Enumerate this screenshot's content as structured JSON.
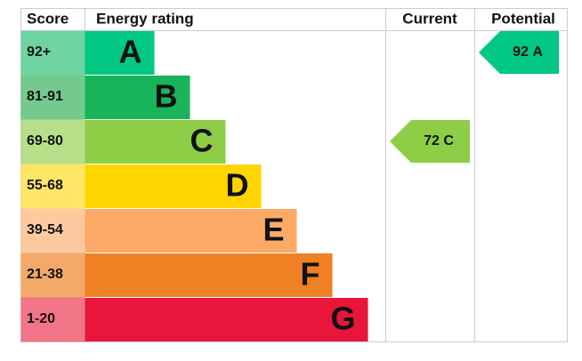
{
  "header": {
    "score": "Score",
    "energy_rating": "Energy rating",
    "current": "Current",
    "potential": "Potential"
  },
  "rows": [
    {
      "score": "92+",
      "rating": "A",
      "color": "#00c781",
      "score_color": "#6fd3a4"
    },
    {
      "score": "81-91",
      "rating": "B",
      "color": "#19b459",
      "score_color": "#74c98e"
    },
    {
      "score": "69-80",
      "rating": "C",
      "color": "#8dce46",
      "score_color": "#b7df8a"
    },
    {
      "score": "55-68",
      "rating": "D",
      "color": "#ffd500",
      "score_color": "#ffe666"
    },
    {
      "score": "39-54",
      "rating": "E",
      "color": "#fcaa65",
      "score_color": "#fdcaa0"
    },
    {
      "score": "21-38",
      "rating": "F",
      "color": "#ef8023",
      "score_color": "#f4a96a"
    },
    {
      "score": "1-20",
      "rating": "G",
      "color": "#e9153b",
      "score_color": "#f27487"
    }
  ],
  "current": {
    "value": 72,
    "rating": "C"
  },
  "potential": {
    "value": 92,
    "rating": "A"
  }
}
